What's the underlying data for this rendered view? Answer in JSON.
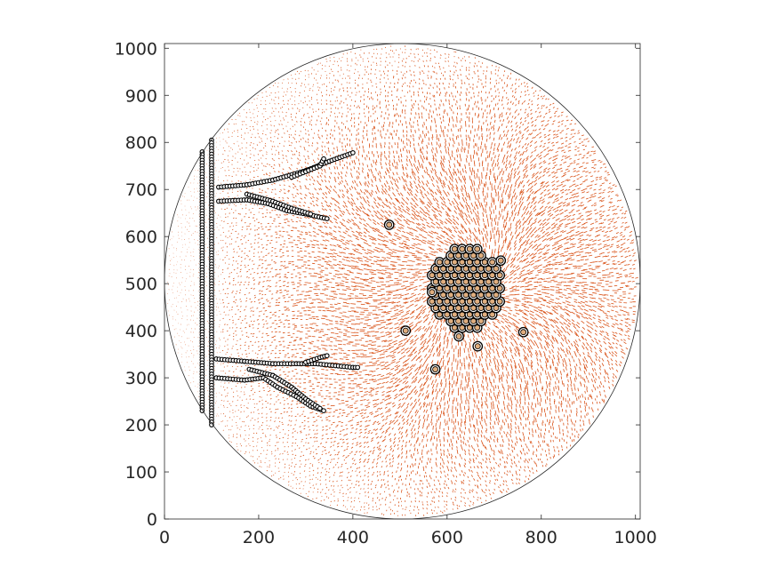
{
  "chart_data": {
    "type": "scatter",
    "title": "",
    "xlabel": "",
    "ylabel": "",
    "xlim": [
      0,
      1010
    ],
    "ylim": [
      0,
      1010
    ],
    "x_ticks": [
      0,
      200,
      400,
      600,
      800,
      1000
    ],
    "y_ticks": [
      0,
      100,
      200,
      300,
      400,
      500,
      600,
      700,
      800,
      900,
      1000
    ],
    "x_tick_labels": [
      "0",
      "200",
      "400",
      "600",
      "800",
      "1000"
    ],
    "y_tick_labels": [
      "0",
      "100",
      "200",
      "300",
      "400",
      "500",
      "600",
      "700",
      "800",
      "900",
      "1000"
    ],
    "grid": false,
    "box": true,
    "boundary_circle": {
      "cx": 505,
      "cy": 505,
      "r": 505
    },
    "vector_field": {
      "color": "#d95319",
      "description_free": true
    },
    "cell_outline_color": "#000000",
    "cell_fill_color": "#e0ae7e",
    "isolated_cells": [
      [
        477,
        625
      ],
      [
        512,
        400
      ],
      [
        575,
        318
      ],
      [
        625,
        388
      ],
      [
        665,
        367
      ],
      [
        762,
        397
      ],
      [
        568,
        482
      ],
      [
        714,
        549
      ]
    ],
    "cluster": {
      "center": [
        640,
        490
      ],
      "spacing": 16
    },
    "structures": {
      "upper": {
        "trunk": [
          [
            100,
            805
          ],
          [
            100,
            200
          ]
        ],
        "branch_top": [
          [
            115,
            705
          ],
          [
            175,
            710
          ],
          [
            230,
            720
          ],
          [
            300,
            740
          ],
          [
            350,
            760
          ],
          [
            400,
            778
          ]
        ],
        "branch_top_spur": [
          [
            270,
            726
          ],
          [
            300,
            738
          ],
          [
            330,
            750
          ],
          [
            338,
            765
          ]
        ],
        "branch_bottom": [
          [
            115,
            675
          ],
          [
            175,
            678
          ],
          [
            220,
            670
          ],
          [
            260,
            655
          ],
          [
            300,
            648
          ],
          [
            345,
            638
          ]
        ],
        "branch_bottom_inner": [
          [
            175,
            690
          ],
          [
            230,
            675
          ],
          [
            270,
            660
          ],
          [
            310,
            648
          ]
        ]
      },
      "lower": {
        "branch_top": [
          [
            110,
            340
          ],
          [
            170,
            335
          ],
          [
            230,
            330
          ],
          [
            280,
            330
          ],
          [
            320,
            330
          ],
          [
            400,
            322
          ],
          [
            410,
            322
          ]
        ],
        "branch_top_spur": [
          [
            300,
            333
          ],
          [
            330,
            343
          ],
          [
            345,
            347
          ]
        ],
        "branch_bottom": [
          [
            110,
            300
          ],
          [
            170,
            295
          ],
          [
            210,
            300
          ],
          [
            240,
            280
          ],
          [
            280,
            260
          ],
          [
            310,
            240
          ],
          [
            338,
            230
          ]
        ],
        "branch_bottom_inner": [
          [
            180,
            318
          ],
          [
            230,
            305
          ],
          [
            270,
            280
          ],
          [
            300,
            255
          ],
          [
            330,
            235
          ]
        ]
      },
      "left_bar": [
        [
          80,
          780
        ],
        [
          80,
          230
        ]
      ]
    }
  }
}
